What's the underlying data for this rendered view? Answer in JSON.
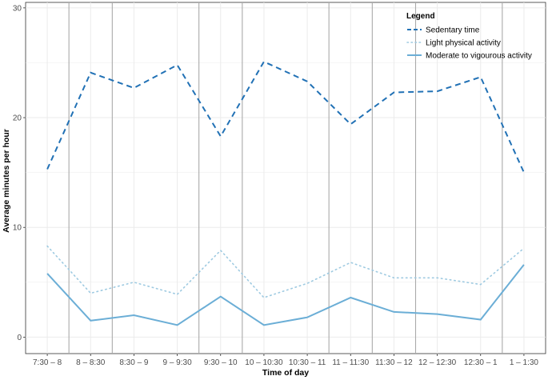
{
  "chart_data": {
    "type": "line",
    "title": "",
    "xlabel": "Time of day",
    "ylabel": "Average minutes per hour",
    "ylim": [
      -1.5,
      30.5
    ],
    "yticks": [
      0,
      10,
      20,
      30
    ],
    "grid": true,
    "legend_position": "top-right",
    "categories": [
      "7:30 – 8",
      "8 – 8:30",
      "8:30 – 9",
      "9 – 9:30",
      "9:30 – 10",
      "10 – 10:30",
      "10:30 – 11",
      "11 – 11:30",
      "11:30 – 12",
      "12 – 12:30",
      "12:30 – 1",
      "1 – 1:30"
    ],
    "vlines_between": [
      "7:30 – 8|8 – 8:30",
      "8 – 8:30|8:30 – 9",
      "9 – 9:30|9:30 – 10",
      "9:30 – 10|10 – 10:30",
      "10:30 – 11|11 – 11:30",
      "11 – 11:30|11:30 – 12",
      "11:30 – 12|12 – 12:30",
      "12:30 – 1|1 – 1:30"
    ],
    "legend": {
      "title": "Legend"
    },
    "series": [
      {
        "name": "Sedentary time",
        "style": "dashed",
        "color": "#2171b5",
        "values": [
          15.3,
          24.1,
          22.7,
          24.8,
          18.3,
          25.1,
          23.3,
          19.4,
          22.3,
          22.4,
          23.7,
          15.0
        ]
      },
      {
        "name": "Light physical activity",
        "style": "dotted",
        "color": "#9ecae1",
        "values": [
          8.3,
          4.0,
          5.0,
          3.9,
          7.9,
          3.6,
          4.9,
          6.8,
          5.4,
          5.4,
          4.8,
          8.1
        ]
      },
      {
        "name": "Moderate to vigourous activity",
        "style": "solid",
        "color": "#6baed6",
        "values": [
          5.8,
          1.5,
          2.0,
          1.1,
          3.7,
          1.1,
          1.8,
          3.6,
          2.3,
          2.1,
          1.6,
          6.6
        ]
      }
    ]
  }
}
